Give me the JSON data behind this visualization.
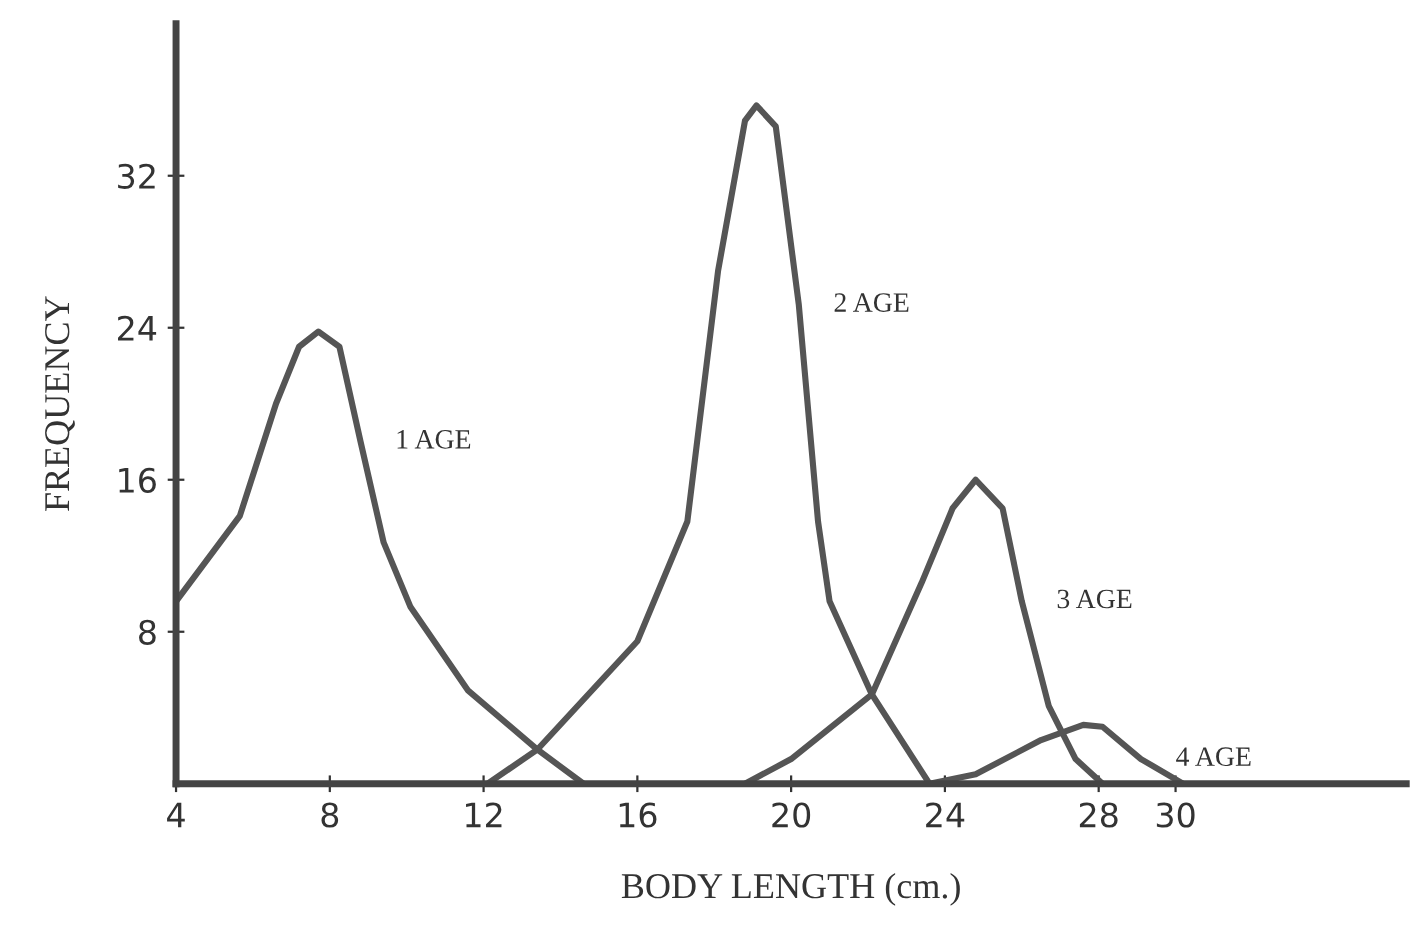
{
  "chart_data": {
    "type": "line",
    "xlabel": "BODY LENGTH (cm.)",
    "ylabel": "FREQUENCY",
    "xlim": [
      4,
      36
    ],
    "ylim": [
      0,
      40
    ],
    "xticks": [
      4,
      8,
      12,
      16,
      20,
      24,
      28,
      30
    ],
    "yticks": [
      8,
      16,
      24,
      32
    ],
    "grid": false,
    "legend": false,
    "marker": "none",
    "line_style": "solid",
    "series": [
      {
        "name": "1 AGE",
        "color": "#555555",
        "x": [
          4,
          5.66,
          6.6,
          7.2,
          7.7,
          8.25,
          8.8,
          9.4,
          10.1,
          11.6,
          13.4,
          14.6
        ],
        "values": [
          9.6,
          14.1,
          20,
          23,
          23.8,
          23,
          18,
          12.7,
          9.3,
          4.9,
          1.8,
          0
        ]
      },
      {
        "name": "2 AGE",
        "color": "#555555",
        "x": [
          12.1,
          13.4,
          16,
          17.3,
          18.1,
          18.8,
          19.1,
          19.6,
          20.2,
          20.7,
          21,
          22.1,
          23.6
        ],
        "values": [
          0,
          1.8,
          7.5,
          13.8,
          27,
          34.9,
          35.7,
          34.6,
          25.2,
          13.8,
          9.6,
          4.7,
          0
        ]
      },
      {
        "name": "3 AGE",
        "color": "#555555",
        "x": [
          18.8,
          20,
          22.1,
          23.4,
          24.2,
          24.8,
          25.5,
          26,
          26.7,
          27.4,
          28.1
        ],
        "values": [
          0,
          1.3,
          4.7,
          10.6,
          14.5,
          16,
          14.5,
          9.6,
          4.1,
          1.3,
          0
        ]
      },
      {
        "name": "4 AGE",
        "color": "#555555",
        "x": [
          23.6,
          24.8,
          26.5,
          27.6,
          28.1,
          29.1,
          30.2
        ],
        "values": [
          0,
          0.5,
          2.3,
          3.1,
          3,
          1.3,
          0
        ]
      }
    ]
  }
}
